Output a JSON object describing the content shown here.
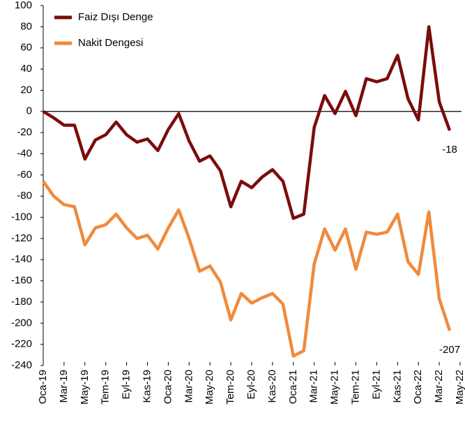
{
  "chart_data": {
    "type": "line",
    "categories": [
      "Oca-19",
      null,
      "Mar-19",
      null,
      "May-19",
      null,
      "Tem-19",
      null,
      "Eyl-19",
      null,
      "Kas-19",
      null,
      "Oca-20",
      null,
      "Mar-20",
      null,
      "May-20",
      null,
      "Tem-20",
      null,
      "Eyl-20",
      null,
      "Kas-20",
      null,
      "Oca-21",
      null,
      "Mar-21",
      null,
      "May-21",
      null,
      "Tem-21",
      null,
      "Eyl-21",
      null,
      "Kas-21",
      null,
      "Oca-22",
      null,
      "Mar-22",
      null,
      "May-22"
    ],
    "series": [
      {
        "name": "Faiz Dışı Denge",
        "color": "#7b0c0c",
        "values": [
          0,
          -6,
          -13,
          -13,
          -45,
          -27,
          -22,
          -10,
          -22,
          -29,
          -26,
          -37,
          -17,
          -2,
          -28,
          -47,
          -42,
          -56,
          -90,
          -66,
          -72,
          -62,
          -55,
          -66,
          -101,
          -97,
          -15,
          15,
          -2,
          19,
          -4,
          31,
          28,
          31,
          53,
          12,
          -8,
          80,
          9,
          -18,
          null
        ]
      },
      {
        "name": "Nakit Dengesi",
        "color": "#f08a3c",
        "values": [
          -66,
          -80,
          -88,
          -90,
          -126,
          -110,
          -107,
          -97,
          -110,
          -120,
          -117,
          -130,
          -110,
          -93,
          -120,
          -151,
          -146,
          -161,
          -197,
          -172,
          -181,
          -176,
          -172,
          -182,
          -231,
          -226,
          -144,
          -111,
          -131,
          -111,
          -149,
          -114,
          -116,
          -114,
          -97,
          -142,
          -154,
          -95,
          -177,
          -207,
          null
        ]
      }
    ],
    "ylim": [
      -240,
      100
    ],
    "yticks": [
      -240,
      -220,
      -200,
      -180,
      -160,
      -140,
      -120,
      -100,
      -80,
      -60,
      -40,
      -20,
      0,
      20,
      40,
      60,
      80,
      100
    ],
    "data_labels": "last",
    "legend": "top-left"
  }
}
